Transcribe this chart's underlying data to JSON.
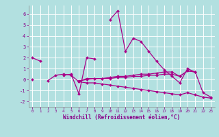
{
  "xlabel": "Windchill (Refroidissement éolien,°C)",
  "background_color": "#b2e0e0",
  "grid_color": "#ffffff",
  "line_color": "#aa0088",
  "x_values": [
    0,
    1,
    2,
    3,
    4,
    5,
    6,
    7,
    8,
    9,
    10,
    11,
    12,
    13,
    14,
    15,
    16,
    17,
    18,
    19,
    20,
    21,
    22,
    23
  ],
  "series1": [
    2.0,
    1.7,
    null,
    null,
    0.4,
    0.5,
    -1.3,
    2.0,
    1.9,
    null,
    5.5,
    6.3,
    2.6,
    3.8,
    3.5,
    2.6,
    1.7,
    0.9,
    0.3,
    -0.3,
    1.0,
    0.7,
    -1.2,
    -1.6
  ],
  "series2": [
    null,
    null,
    -0.1,
    0.4,
    0.5,
    0.4,
    -0.2,
    0.1,
    0.1,
    0.1,
    0.2,
    0.3,
    0.3,
    0.4,
    0.5,
    0.5,
    0.6,
    0.7,
    0.7,
    0.3,
    0.8,
    0.7,
    null,
    null
  ],
  "series3": [
    null,
    null,
    null,
    null,
    null,
    null,
    -0.1,
    0.0,
    0.1,
    0.1,
    0.1,
    0.2,
    0.2,
    0.3,
    0.3,
    0.4,
    0.4,
    0.5,
    0.5,
    0.3,
    0.8,
    0.7,
    null,
    null
  ],
  "series4": [
    0.0,
    null,
    null,
    null,
    null,
    null,
    -0.2,
    -0.3,
    -0.3,
    -0.4,
    -0.5,
    -0.6,
    -0.7,
    -0.8,
    -0.9,
    -1.0,
    -1.1,
    -1.2,
    -1.3,
    -1.4,
    -1.2,
    -1.4,
    -1.6,
    -1.7
  ],
  "ylim": [
    -2.5,
    6.8
  ],
  "yticks": [
    -2,
    -1,
    0,
    1,
    2,
    3,
    4,
    5,
    6
  ],
  "xticks": [
    0,
    1,
    2,
    3,
    4,
    5,
    6,
    7,
    8,
    9,
    10,
    11,
    12,
    13,
    14,
    15,
    16,
    17,
    18,
    19,
    20,
    21,
    22,
    23
  ],
  "figsize": [
    3.2,
    2.0
  ],
  "dpi": 100
}
